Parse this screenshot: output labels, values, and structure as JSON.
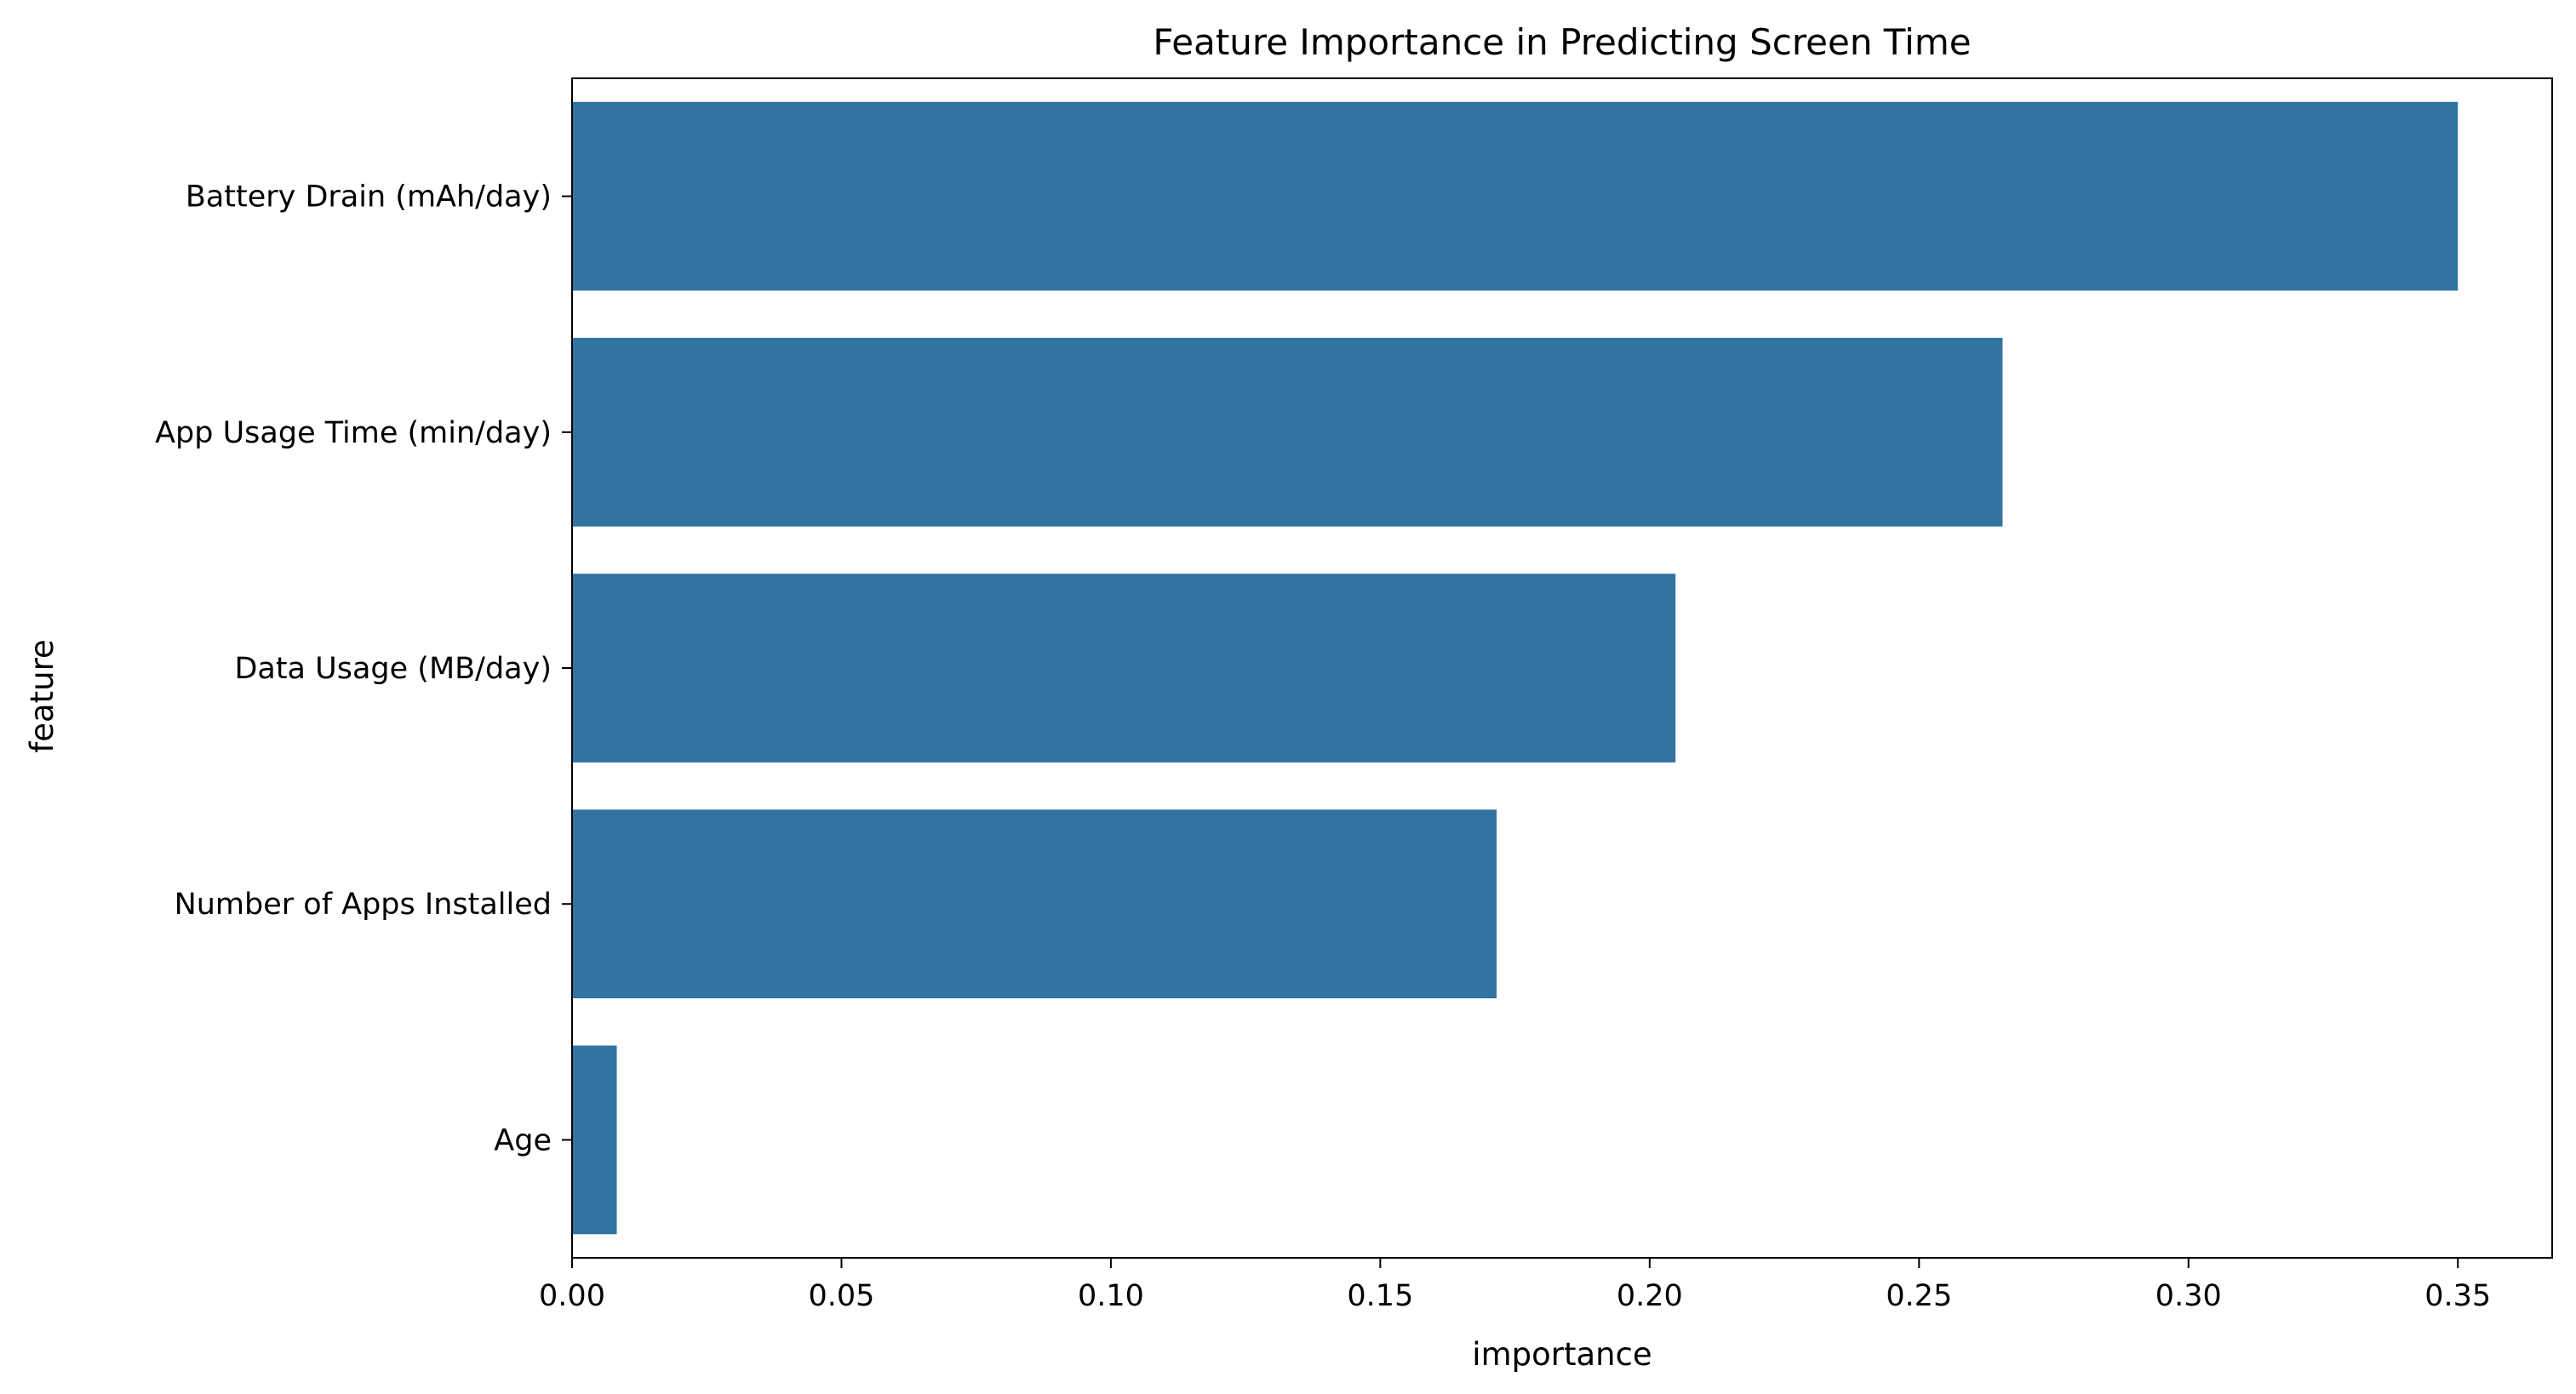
{
  "chart_data": {
    "type": "bar",
    "orientation": "horizontal",
    "title": "Feature Importance in Predicting Screen Time",
    "xlabel": "importance",
    "ylabel": "feature",
    "categories": [
      "Battery Drain (mAh/day)",
      "App Usage Time (min/day)",
      "Data Usage (MB/day)",
      "Number of Apps Installed",
      "Age"
    ],
    "values": [
      0.35,
      0.2655,
      0.2048,
      0.1716,
      0.0083
    ],
    "xlim": [
      0,
      0.3675
    ],
    "xticks": [
      "0.00",
      "0.05",
      "0.10",
      "0.15",
      "0.20",
      "0.25",
      "0.30",
      "0.35"
    ],
    "xtick_values": [
      0,
      0.05,
      0.1,
      0.15,
      0.2,
      0.25,
      0.3,
      0.35
    ],
    "grid": false,
    "legend": "none",
    "colors": {
      "bar": "#3274a1",
      "axis": "#000000"
    }
  }
}
